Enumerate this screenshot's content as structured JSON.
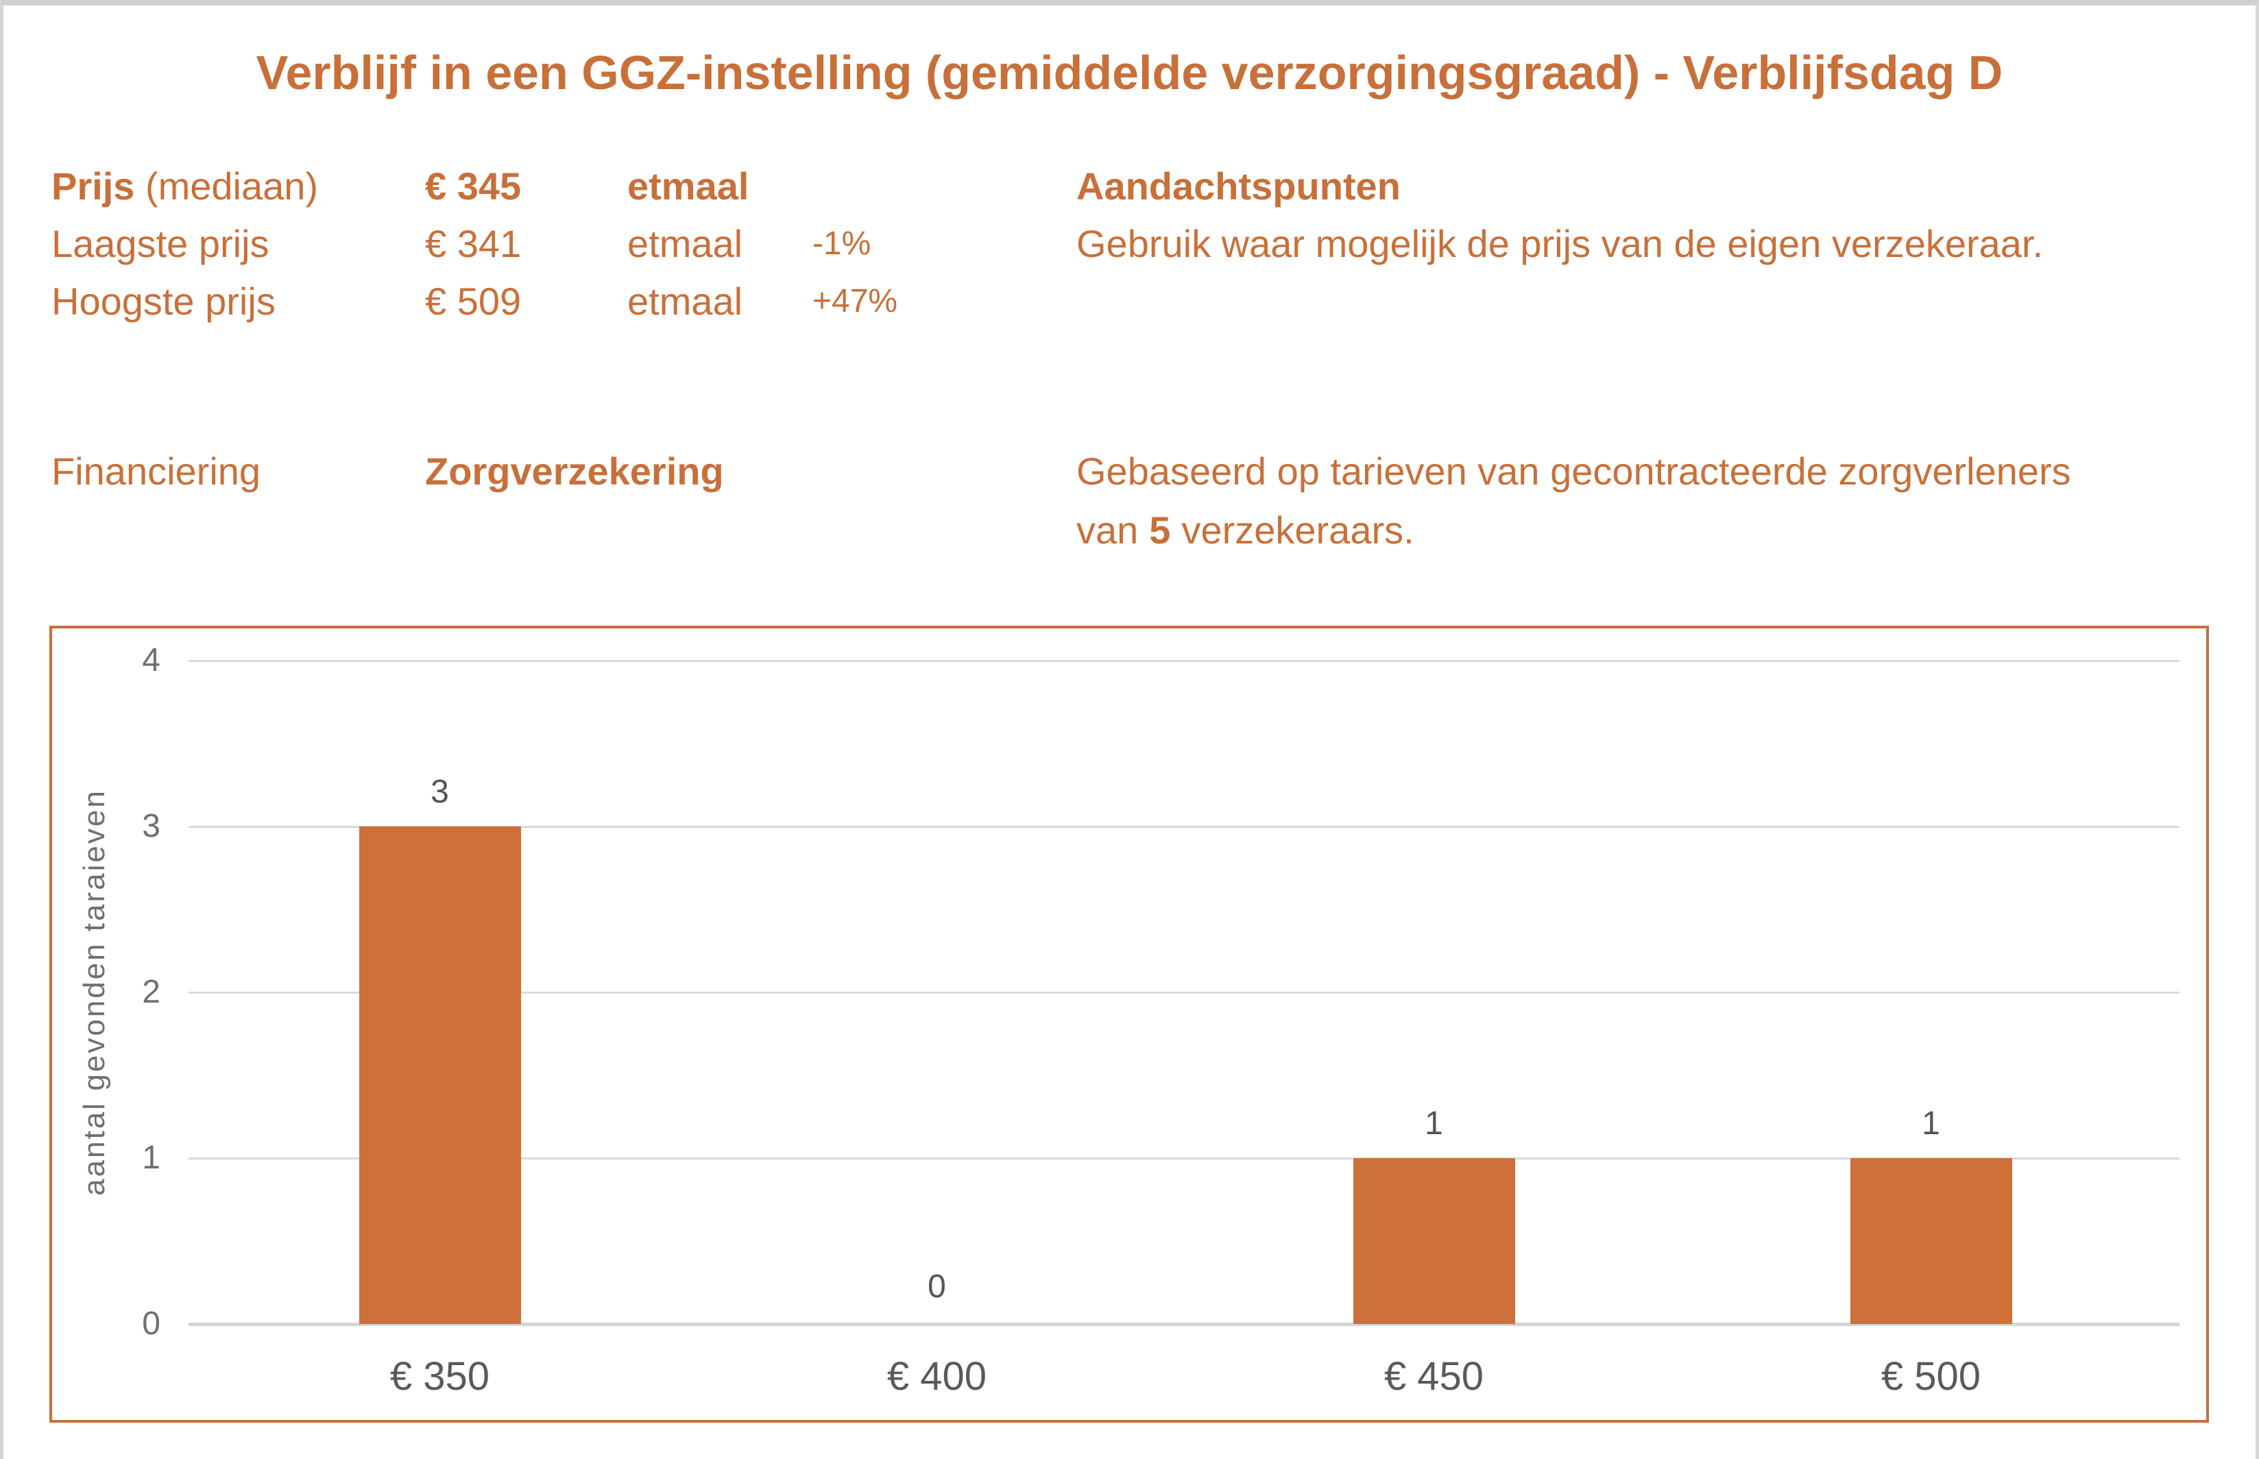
{
  "page": {
    "title": "Verblijf in een GGZ-instelling (gemiddelde verzorgingsgraad) - Verblijfsdag D"
  },
  "price_table": {
    "rows": [
      {
        "label_bold": "Prijs",
        "label_normal": " (mediaan)",
        "value": "€ 345",
        "unit": "etmaal",
        "delta": ""
      },
      {
        "label": "Laagste prijs",
        "value": "€ 341",
        "unit": "etmaal",
        "delta": "-1%"
      },
      {
        "label": "Hoogste prijs",
        "value": "€ 509",
        "unit": "etmaal",
        "delta": "+47%"
      }
    ]
  },
  "financing": {
    "label": "Financiering",
    "value": "Zorgverzekering"
  },
  "notes": {
    "title": "Aandachtspunten",
    "advice": "Gebruik waar mogelijk de prijs van de eigen verzekeraar.",
    "based_line1": "Gebaseerd op tarieven van gecontracteerde zorgverleners",
    "based_line2_pre": "van",
    "insurer_count": "5",
    "based_line2_post": "verzekeraars."
  },
  "chart_data": {
    "type": "bar",
    "title": "",
    "categories": [
      "€ 350",
      "€ 400",
      "€ 450",
      "€ 500"
    ],
    "values": [
      3,
      0,
      1,
      1
    ],
    "xlabel": "",
    "ylabel": "aantal gevonden taraieven",
    "ylim": [
      0,
      4
    ],
    "yticks": [
      0,
      1,
      2,
      3,
      4
    ],
    "grid": true,
    "legend": "none",
    "bar_color": "#cd7039",
    "border_color": "#c4703c",
    "gridline_color": "#d9d9d9",
    "tick_text_color": "#6f6f6f",
    "value_label_color": "#545454"
  },
  "colors": {
    "accent_orange": "#c8703a",
    "page_edge_gray": "#cfcfcf"
  }
}
